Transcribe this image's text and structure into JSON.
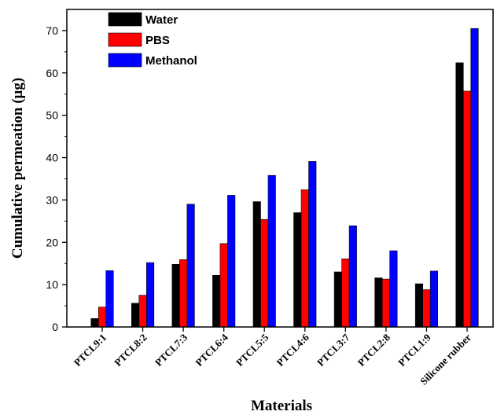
{
  "chart_data": {
    "type": "bar",
    "title": "",
    "xlabel": "Materials",
    "ylabel": "Cumulative permeation (μg)",
    "ylim": [
      0,
      75
    ],
    "yticks": [
      0,
      10,
      20,
      30,
      40,
      50,
      60,
      70
    ],
    "grid": false,
    "legend_position": "top-left",
    "categories": [
      "PTCL9:1",
      "PTCL8:2",
      "PTCL7:3",
      "PTCL6:4",
      "PTCL5:5",
      "PTCL4:6",
      "PTCL3:7",
      "PTCL2:8",
      "PTCL1:9",
      "Silicone rubber"
    ],
    "series": [
      {
        "name": "Water",
        "color": "#000000",
        "values": [
          2.0,
          5.6,
          14.8,
          12.2,
          29.6,
          27.0,
          13.0,
          11.6,
          10.2,
          62.4
        ]
      },
      {
        "name": "PBS",
        "color": "#ff0000",
        "values": [
          4.7,
          7.5,
          15.9,
          19.7,
          25.4,
          32.4,
          16.1,
          11.3,
          8.8,
          55.7
        ]
      },
      {
        "name": "Methanol",
        "color": "#0000ff",
        "values": [
          13.3,
          15.2,
          29.0,
          31.1,
          35.8,
          39.1,
          23.9,
          18.0,
          13.2,
          70.5
        ]
      }
    ]
  }
}
